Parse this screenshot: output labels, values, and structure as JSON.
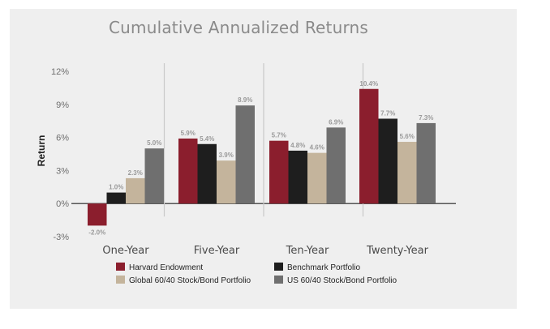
{
  "chart_data": {
    "type": "bar",
    "title": "Cumulative Annualized Returns",
    "xlabel": "",
    "ylabel": "Return",
    "ylim": [
      -3,
      12
    ],
    "yticks": [
      "12%",
      "9%",
      "6%",
      "3%",
      "0%",
      "-3%"
    ],
    "ytick_values": [
      12,
      9,
      6,
      3,
      0,
      -3
    ],
    "categories": [
      "One-Year",
      "Five-Year",
      "Ten-Year",
      "Twenty-Year"
    ],
    "series": [
      {
        "name": "Harvard Endowment",
        "color": "#8b1e2d",
        "values": [
          -2.0,
          5.9,
          5.7,
          10.4
        ],
        "labels": [
          "-2.0%",
          "5.9%",
          "5.7%",
          "10.4%"
        ]
      },
      {
        "name": "Benchmark Portfolio",
        "color": "#1e1e1e",
        "values": [
          1.0,
          5.4,
          4.8,
          7.7
        ],
        "labels": [
          "1.0%",
          "5.4%",
          "4.8%",
          "7.7%"
        ]
      },
      {
        "name": "Global 60/40 Stock/Bond Portfolio",
        "color": "#c4b49c",
        "values": [
          2.3,
          3.9,
          4.6,
          5.6
        ],
        "labels": [
          "2.3%",
          "3.9%",
          "4.6%",
          "5.6%"
        ]
      },
      {
        "name": "US 60/40 Stock/Bond Portfolio",
        "color": "#6f6f6f",
        "values": [
          5.0,
          8.9,
          6.9,
          7.3
        ],
        "labels": [
          "5.0%",
          "8.9%",
          "6.9%",
          "7.3%"
        ]
      }
    ],
    "legend": "bottom",
    "grid": false
  }
}
